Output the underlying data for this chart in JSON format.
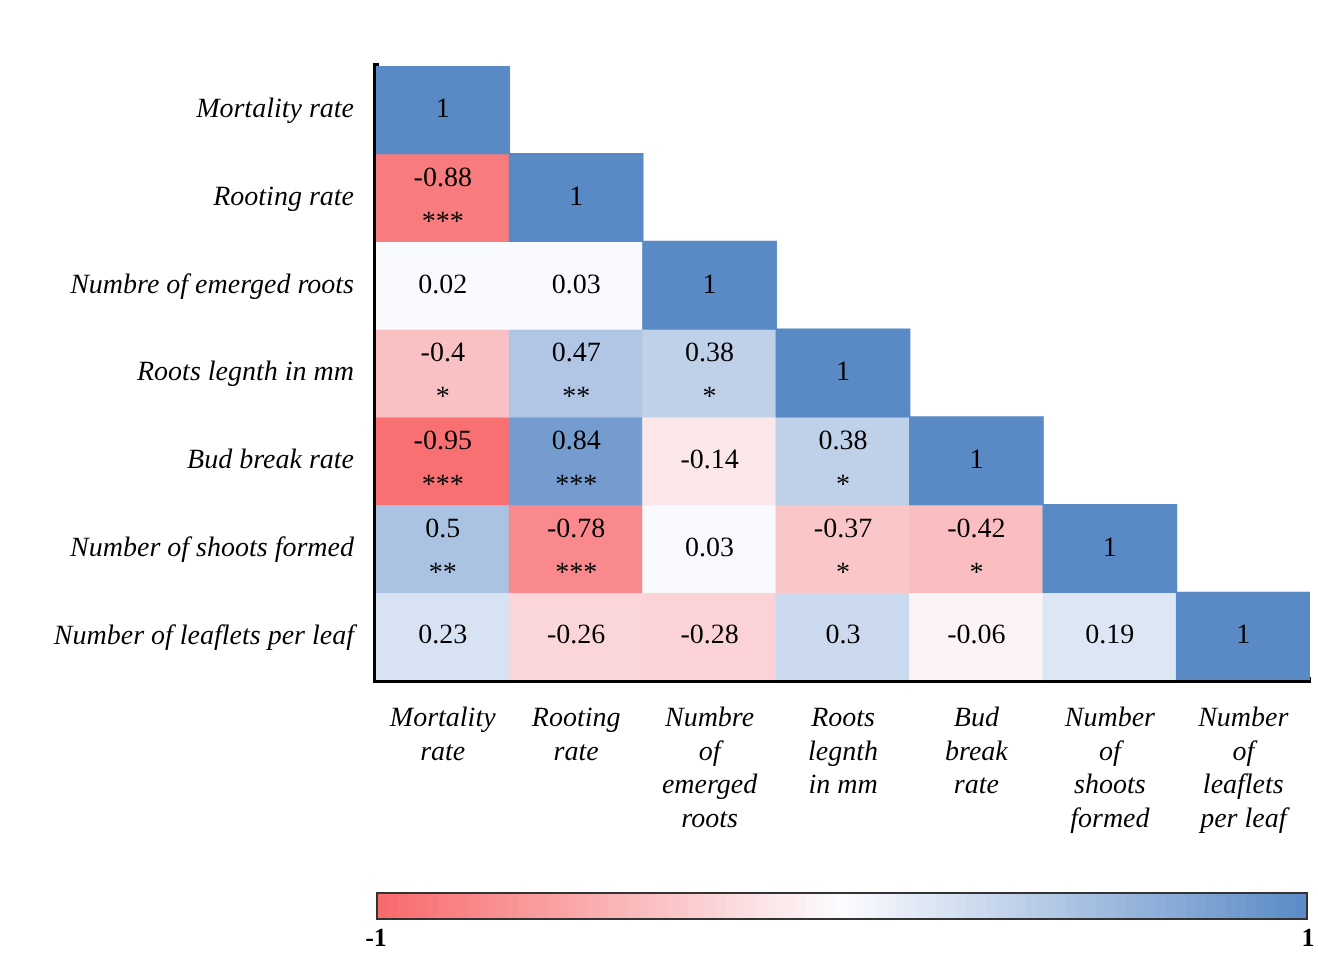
{
  "chart_data": {
    "type": "heatmap",
    "categories": [
      "Mortality rate",
      "Rooting rate",
      "Numbre of emerged roots",
      "Roots legnth in mm",
      "Bud break rate",
      "Number of shoots formed",
      "Number of leaflets per leaf"
    ],
    "y_categories": [
      "Mortality rate",
      "Rooting rate",
      "Numbre of emerged roots",
      "Roots legnth in mm",
      "Bud break rate",
      "Number of shoots formed",
      "Number of leaflets per leaf"
    ],
    "cells": [
      [
        1,
        null,
        null,
        null,
        null,
        null,
        null
      ],
      [
        -0.88,
        1,
        null,
        null,
        null,
        null,
        null
      ],
      [
        0.02,
        0.03,
        1,
        null,
        null,
        null,
        null
      ],
      [
        -0.4,
        0.47,
        0.38,
        1,
        null,
        null,
        null
      ],
      [
        -0.95,
        0.84,
        -0.14,
        0.38,
        1,
        null,
        null
      ],
      [
        0.5,
        -0.78,
        0.03,
        -0.37,
        -0.42,
        1,
        null
      ],
      [
        0.23,
        -0.26,
        -0.28,
        0.3,
        -0.06,
        0.19,
        1
      ]
    ],
    "cell_labels": [
      [
        "1",
        null,
        null,
        null,
        null,
        null,
        null
      ],
      [
        "-0.88\n***",
        "1",
        null,
        null,
        null,
        null,
        null
      ],
      [
        "0.02",
        "0.03",
        "1",
        null,
        null,
        null,
        null
      ],
      [
        "-0.4\n*",
        "0.47\n**",
        "0.38\n*",
        "1",
        null,
        null,
        null
      ],
      [
        "-0.95\n***",
        "0.84\n***",
        "-0.14",
        "0.38\n*",
        "1",
        null,
        null
      ],
      [
        "0.5\n**",
        "-0.78\n***",
        "0.03",
        "-0.37\n*",
        "-0.42\n*",
        "1",
        null
      ],
      [
        "0.23",
        "-0.26",
        "-0.28",
        "0.3",
        "-0.06",
        "0.19",
        "1"
      ]
    ],
    "clim": [
      -1,
      1
    ],
    "cticks": [
      -1,
      1
    ]
  }
}
